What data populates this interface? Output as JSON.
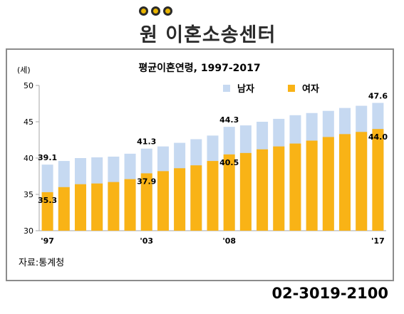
{
  "header": {
    "brand": "원 이혼소송센터",
    "logo_dots": [
      "dot",
      "dot",
      "dot"
    ]
  },
  "footer": {
    "source": "자료:통계청",
    "phone": "02-3019-2100"
  },
  "colors": {
    "male": "#c6d9f1",
    "female": "#f9b316",
    "axis": "#a6a6a6",
    "brand_text": "#2a2a2a"
  },
  "chart_data": {
    "type": "bar",
    "title": "평균이혼연령, 1997-2017",
    "ylabel": "(세)",
    "ylim": [
      30,
      50
    ],
    "yticks": [
      30,
      35,
      40,
      45,
      50
    ],
    "categories": [
      "1997",
      "1998",
      "1999",
      "2000",
      "2001",
      "2002",
      "2003",
      "2004",
      "2005",
      "2006",
      "2007",
      "2008",
      "2009",
      "2010",
      "2011",
      "2012",
      "2013",
      "2014",
      "2015",
      "2016",
      "2017"
    ],
    "x_tick_labels": [
      {
        "index": 0,
        "label": "'97"
      },
      {
        "index": 6,
        "label": "'03"
      },
      {
        "index": 11,
        "label": "'08"
      },
      {
        "index": 20,
        "label": "'17"
      }
    ],
    "legend_position": "top-right",
    "series": [
      {
        "name": "남자",
        "color": "#c6d9f1",
        "values": [
          39.1,
          39.6,
          40.0,
          40.1,
          40.2,
          40.6,
          41.3,
          41.6,
          42.1,
          42.6,
          43.1,
          44.3,
          44.5,
          45.0,
          45.4,
          45.9,
          46.2,
          46.5,
          46.9,
          47.2,
          47.6
        ]
      },
      {
        "name": "여자",
        "color": "#f9b316",
        "values": [
          35.3,
          36.0,
          36.4,
          36.5,
          36.7,
          37.1,
          37.9,
          38.2,
          38.6,
          39.0,
          39.6,
          40.5,
          40.7,
          41.2,
          41.6,
          42.0,
          42.4,
          42.9,
          43.3,
          43.6,
          44.0
        ]
      }
    ],
    "data_labels": [
      {
        "series": 0,
        "index": 0,
        "text": "39.1"
      },
      {
        "series": 1,
        "index": 0,
        "text": "35.3"
      },
      {
        "series": 0,
        "index": 6,
        "text": "41.3"
      },
      {
        "series": 1,
        "index": 6,
        "text": "37.9"
      },
      {
        "series": 0,
        "index": 11,
        "text": "44.3"
      },
      {
        "series": 1,
        "index": 11,
        "text": "40.5"
      },
      {
        "series": 0,
        "index": 20,
        "text": "47.6"
      },
      {
        "series": 1,
        "index": 20,
        "text": "44.0"
      }
    ]
  }
}
